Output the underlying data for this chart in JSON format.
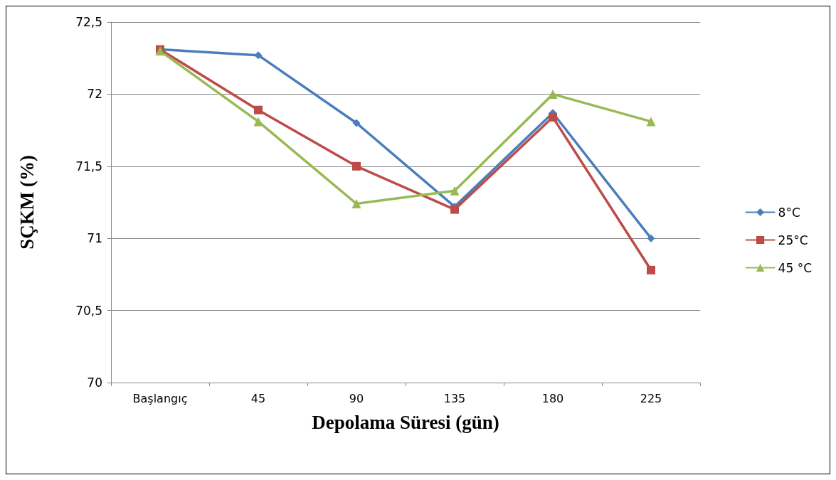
{
  "chart_data": {
    "type": "line",
    "xlabel": "Depolama Süresi (gün)",
    "ylabel": "SÇKM (%)",
    "categories": [
      "Başlangıç",
      "45",
      "90",
      "135",
      "180",
      "225"
    ],
    "series": [
      {
        "name": "8°C",
        "color": "#4a7ebb",
        "marker": "diamond",
        "values": [
          72.31,
          72.27,
          71.8,
          71.22,
          71.87,
          71.0
        ]
      },
      {
        "name": "25°C",
        "color": "#be4b48",
        "marker": "square",
        "values": [
          72.31,
          71.89,
          71.5,
          71.2,
          71.84,
          70.78
        ]
      },
      {
        "name": "45 °C",
        "color": "#98b954",
        "marker": "triangle",
        "values": [
          72.3,
          71.81,
          71.24,
          71.33,
          72.0,
          71.81
        ]
      }
    ],
    "ylim": [
      70,
      72.5
    ],
    "yticks": [
      {
        "value": 70,
        "label": "70"
      },
      {
        "value": 70.5,
        "label": "70,5"
      },
      {
        "value": 71,
        "label": "71"
      },
      {
        "value": 71.5,
        "label": "71,5"
      },
      {
        "value": 72,
        "label": "72"
      },
      {
        "value": 72.5,
        "label": "72,5"
      }
    ],
    "grid": "y",
    "legend": "right",
    "line_style": "solid"
  }
}
